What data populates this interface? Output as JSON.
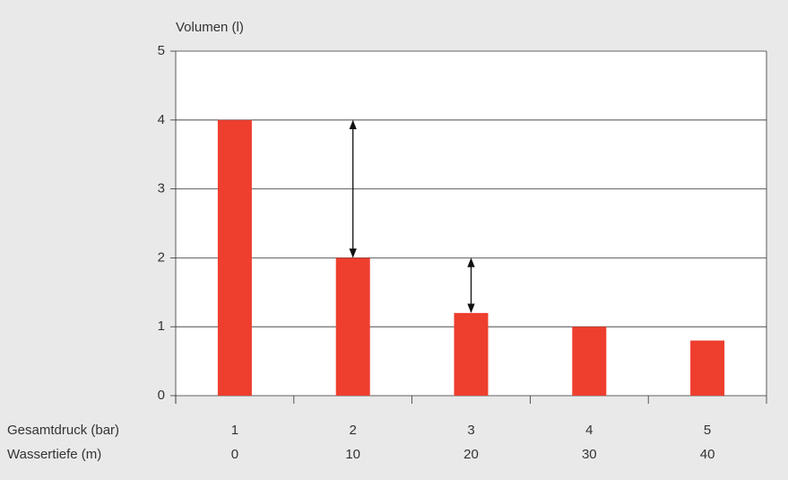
{
  "chart_data": {
    "type": "bar",
    "y_label": "Volumen (l)",
    "x_label": "Gesamtdruck (bar)",
    "categories": [
      "1",
      "2",
      "3",
      "4",
      "5"
    ],
    "x2_label": "Wassertiefe (m)",
    "categories2": [
      "0",
      "10",
      "20",
      "30",
      "40"
    ],
    "values": [
      4,
      2,
      1.2,
      1,
      0.8
    ],
    "color": "#ee3e2e",
    "ylim": [
      0,
      5
    ],
    "yticks": [
      0,
      1,
      2,
      3,
      4,
      5
    ],
    "grid": true
  }
}
